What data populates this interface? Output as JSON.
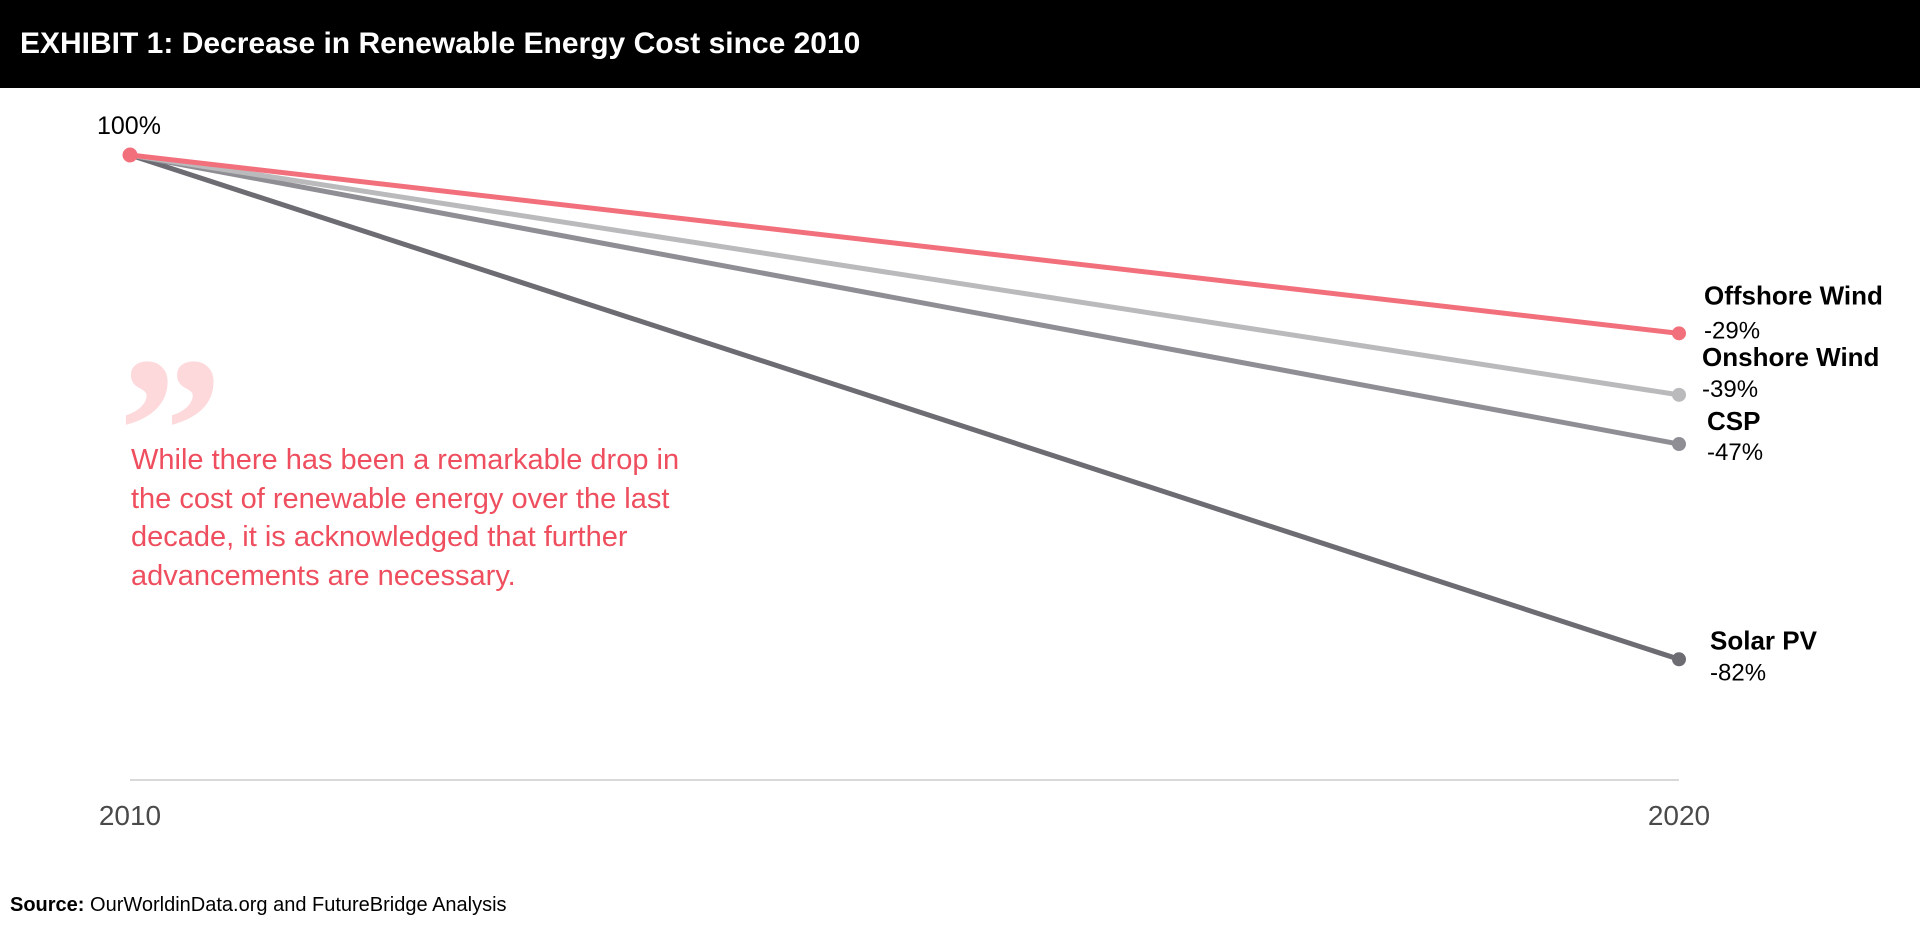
{
  "header": {
    "title": "EXHIBIT 1: Decrease in Renewable Energy Cost since 2010"
  },
  "chart_data": {
    "type": "line",
    "title": "EXHIBIT 1: Decrease in Renewable Energy Cost since 2010",
    "xlabel": "",
    "ylabel": "",
    "x": [
      2010,
      2020
    ],
    "x_tick_labels": [
      "2010",
      "2020"
    ],
    "ylim": [
      0,
      100
    ],
    "start_label": "100%",
    "grid": false,
    "legend": "direct-labels-right",
    "series": [
      {
        "name": "Offshore Wind",
        "values": [
          100,
          71
        ],
        "change_label": "-29%",
        "color": "#f2707c",
        "width": 5
      },
      {
        "name": "Onshore Wind",
        "values": [
          100,
          61
        ],
        "change_label": "-39%",
        "color": "#bababd",
        "width": 5
      },
      {
        "name": "CSP",
        "values": [
          100,
          53
        ],
        "change_label": "-47%",
        "color": "#8f8e94",
        "width": 5
      },
      {
        "name": "Solar PV",
        "values": [
          100,
          18
        ],
        "change_label": "-82%",
        "color": "#6d6c73",
        "width": 5
      }
    ],
    "start_marker_color": "#f2707c",
    "baseline_color": "#d9d9d9"
  },
  "quote": {
    "mark": "”",
    "text": "While there has been a remarkable drop in the cost of renewable energy over the last decade, it is acknowledged that further advancements are necessary."
  },
  "source": {
    "label": "Source:",
    "text": "OurWorldinData.org and FutureBridge Analysis"
  }
}
